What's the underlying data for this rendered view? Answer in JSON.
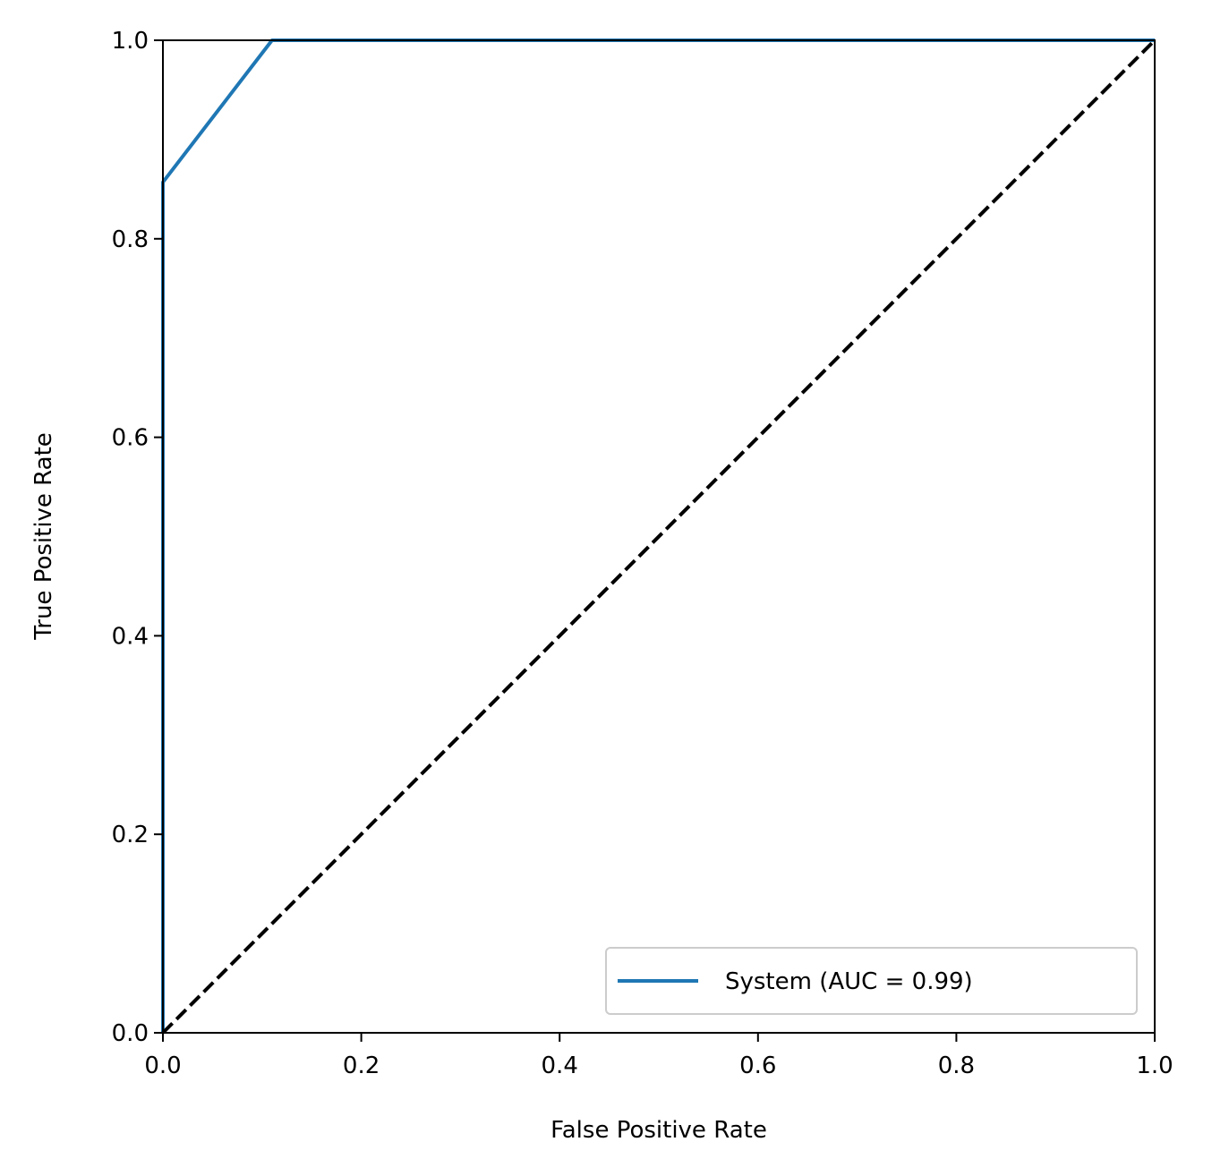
{
  "chart_data": {
    "type": "line",
    "title": "",
    "xlabel": "False Positive Rate",
    "ylabel": "True Positive Rate",
    "xlim": [
      0.0,
      1.0
    ],
    "ylim": [
      0.0,
      1.0
    ],
    "xticks": [
      0.0,
      0.2,
      0.4,
      0.6,
      0.8,
      1.0
    ],
    "yticks": [
      0.0,
      0.2,
      0.4,
      0.6,
      0.8,
      1.0
    ],
    "xtick_labels": [
      "0.0",
      "0.2",
      "0.4",
      "0.6",
      "0.8",
      "1.0"
    ],
    "ytick_labels": [
      "0.0",
      "0.2",
      "0.4",
      "0.6",
      "0.8",
      "1.0"
    ],
    "grid": false,
    "legend": {
      "placement": "lower-right",
      "entries": [
        "System (AUC = 0.99)"
      ]
    },
    "series": [
      {
        "name": "System (AUC = 0.99)",
        "color": "#1f77b4",
        "style": "solid",
        "x": [
          0.0,
          0.0,
          0.11,
          1.0
        ],
        "y": [
          0.0,
          0.857,
          1.0,
          1.0
        ]
      },
      {
        "name": "",
        "color": "#000000",
        "style": "dashed",
        "x": [
          0.0,
          1.0
        ],
        "y": [
          0.0,
          1.0
        ]
      }
    ]
  }
}
